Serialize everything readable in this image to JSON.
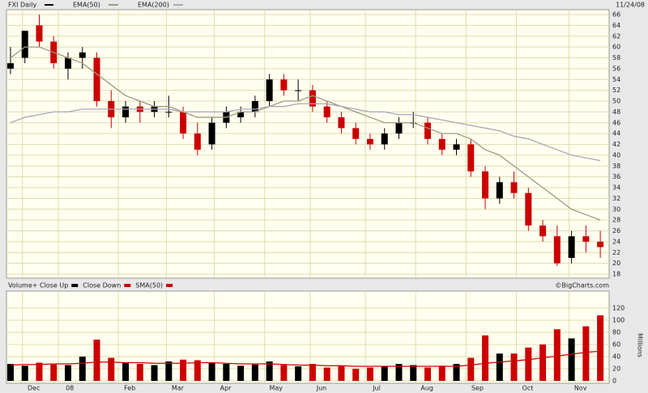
{
  "chart_data": [
    {
      "type": "candlestick",
      "title": "FXI Daily",
      "date": "11/24/08",
      "xlim": [
        0,
        250
      ],
      "ylim": [
        18,
        66
      ],
      "yticks": [
        18,
        20,
        22,
        24,
        26,
        28,
        30,
        32,
        34,
        36,
        38,
        40,
        42,
        44,
        46,
        48,
        50,
        52,
        54,
        56,
        58,
        60,
        62,
        64,
        66
      ],
      "grid": true,
      "up_color": "#000000",
      "down_color": "#cc0000",
      "x": [
        1,
        7,
        13,
        19,
        25,
        31,
        37,
        43,
        49,
        55,
        61,
        67,
        73,
        79,
        85,
        91,
        97,
        103,
        109,
        115,
        121,
        127,
        133,
        139,
        145,
        151,
        157,
        163,
        169,
        175,
        181,
        187,
        193,
        199,
        205,
        211,
        217,
        223,
        229,
        235,
        241,
        247
      ],
      "open": [
        56,
        58,
        64,
        61,
        56,
        58,
        58,
        50,
        47,
        49,
        48,
        48,
        48,
        44,
        42,
        46,
        47,
        48,
        50,
        54,
        52,
        52,
        49,
        47,
        45,
        43,
        42,
        44,
        46,
        46,
        43,
        41,
        42,
        37,
        32,
        35,
        33,
        27,
        25,
        21,
        25,
        24
      ],
      "high": [
        60,
        63,
        66,
        62,
        59,
        60,
        59,
        52,
        50,
        50,
        50,
        51,
        49,
        46,
        47,
        49,
        49,
        51,
        55,
        55,
        54,
        53,
        50,
        48,
        46,
        44,
        45,
        47,
        48,
        47,
        44,
        43,
        43,
        38,
        36,
        37,
        34,
        28,
        27,
        26,
        27,
        26
      ],
      "low": [
        55,
        57,
        60,
        56,
        54,
        56,
        49,
        45,
        46,
        46,
        47,
        47,
        43,
        40,
        41,
        45,
        46,
        47,
        49,
        51,
        50,
        48,
        46,
        44,
        42,
        41,
        41,
        43,
        45,
        42,
        40,
        40,
        36,
        30,
        31,
        32,
        26,
        24,
        19.5,
        20,
        22,
        21
      ],
      "close": [
        57,
        63,
        61,
        57,
        58,
        59,
        50,
        47,
        49,
        48,
        49,
        48,
        44,
        41,
        46,
        48,
        48,
        50,
        54,
        52,
        52,
        49,
        47,
        45,
        43,
        42,
        44,
        46,
        46,
        43,
        41,
        42,
        37,
        32,
        35,
        33,
        27,
        25,
        20,
        25,
        24,
        23
      ],
      "series": [
        {
          "name": "EMA(50)",
          "color": "#a09a80",
          "values": [
            58,
            60,
            60,
            59,
            58,
            57,
            55,
            53,
            51,
            50,
            49,
            49,
            48,
            47,
            47,
            47,
            48,
            48,
            49,
            50,
            50,
            51,
            50,
            49,
            48,
            47,
            46,
            46,
            46,
            45,
            44,
            44,
            43,
            41,
            40,
            38,
            36,
            34,
            32,
            30,
            29,
            28
          ]
        },
        {
          "name": "EMA(200)",
          "color": "#a8a8b8",
          "values": [
            46,
            47,
            47.5,
            48,
            48,
            48.5,
            48.5,
            48.5,
            48.5,
            48.5,
            48.5,
            48.5,
            48,
            48,
            48,
            48,
            48.5,
            48.5,
            49,
            49,
            49.5,
            49.5,
            49.5,
            49,
            48.5,
            48,
            48,
            47.5,
            47.5,
            47,
            46.5,
            46,
            45.5,
            45,
            44.5,
            43.5,
            43,
            42,
            41,
            40,
            39.5,
            39
          ]
        }
      ]
    },
    {
      "type": "bar",
      "legend": [
        {
          "name": "Volume+ Close Up",
          "color": "#000000"
        },
        {
          "name": "Close Down",
          "color": "#cc0000"
        }
      ],
      "ylabel": "Millions",
      "credit": "©BigCharts.com",
      "xlim": [
        0,
        250
      ],
      "ylim": [
        0,
        120
      ],
      "yticks": [
        0,
        20,
        40,
        60,
        80,
        100,
        120
      ],
      "xticks": [
        {
          "value": 6,
          "label": "Dec"
        },
        {
          "value": 21,
          "label": "08"
        },
        {
          "value": 46,
          "label": "Feb"
        },
        {
          "value": 66,
          "label": "Mar"
        },
        {
          "value": 86,
          "label": "Apr"
        },
        {
          "value": 107,
          "label": "May"
        },
        {
          "value": 126,
          "label": "Jun"
        },
        {
          "value": 149,
          "label": "Jul"
        },
        {
          "value": 170,
          "label": "Aug"
        },
        {
          "value": 191,
          "label": "Sep"
        },
        {
          "value": 212,
          "label": "Oct"
        },
        {
          "value": 234,
          "label": "Nov"
        }
      ],
      "values": [
        28,
        25,
        30,
        27,
        26,
        40,
        68,
        38,
        30,
        28,
        26,
        32,
        35,
        34,
        30,
        28,
        25,
        27,
        32,
        26,
        24,
        28,
        22,
        25,
        20,
        22,
        24,
        28,
        26,
        22,
        25,
        28,
        38,
        75,
        45,
        45,
        55,
        60,
        85,
        70,
        90,
        108
      ],
      "series": [
        {
          "name": "SMA(50)",
          "color": "#cc0000",
          "values": [
            26,
            27,
            27,
            28,
            28,
            29,
            31,
            31,
            30,
            30,
            29,
            29,
            29,
            30,
            30,
            29,
            28,
            28,
            28,
            27,
            26,
            26,
            25,
            25,
            24,
            24,
            24,
            24,
            24,
            24,
            24,
            24,
            26,
            29,
            31,
            33,
            35,
            38,
            41,
            44,
            47,
            49
          ]
        }
      ]
    }
  ]
}
